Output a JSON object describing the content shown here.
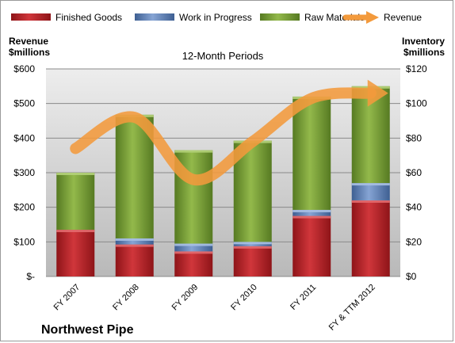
{
  "chart_data": {
    "type": "bar",
    "stacked": true,
    "title": "12-Month Periods",
    "company": "Northwest Pipe",
    "left_axis_title": [
      "Revenue",
      "$millions"
    ],
    "right_axis_title": [
      "Inventory",
      "$millions"
    ],
    "categories": [
      "FY 2007",
      "FY 2008",
      "FY 2009",
      "FY 2010",
      "FY 2011",
      "FY & TTM 2012"
    ],
    "left_ticks": [
      "$-",
      "$100",
      "$200",
      "$300",
      "$400",
      "$500",
      "$600"
    ],
    "right_ticks": [
      "$0",
      "$20",
      "$40",
      "$60",
      "$80",
      "$100",
      "$120"
    ],
    "ylim_inventory": [
      0,
      120
    ],
    "ylim_revenue": [
      0,
      600
    ],
    "series": [
      {
        "name": "Finished Goods",
        "axis": "inventory",
        "color": "#c0272d",
        "values": [
          27,
          18.5,
          14.5,
          17.5,
          35,
          44
        ]
      },
      {
        "name": "Work in Progress",
        "axis": "inventory",
        "color": "#6f8fc3",
        "values": [
          0,
          3.5,
          4.5,
          2.5,
          3.5,
          10
        ]
      },
      {
        "name": "Raw Materials",
        "axis": "inventory",
        "color": "#7fa33a",
        "values": [
          33,
          71.5,
          54,
          58.5,
          65.5,
          56
        ]
      },
      {
        "name": "Revenue",
        "axis": "revenue",
        "color": "#f39a3c",
        "values": [
          370,
          460,
          280,
          390,
          515,
          530
        ]
      }
    ],
    "grid": true,
    "legend_position": "top"
  }
}
